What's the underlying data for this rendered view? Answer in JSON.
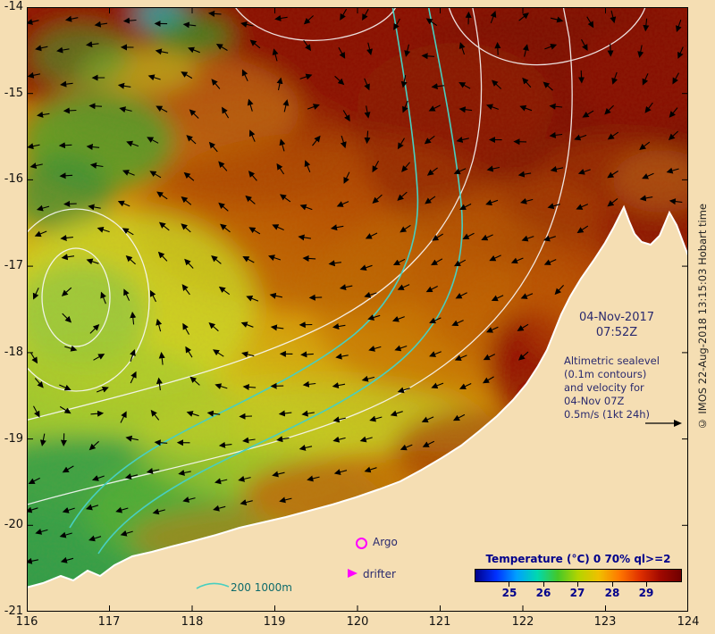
{
  "page": {
    "background": "#f5deb3"
  },
  "axes": {
    "x_tick_labels": [
      "116",
      "117",
      "118",
      "119",
      "120",
      "121",
      "122",
      "123",
      "124"
    ],
    "y_tick_labels": [
      "-14",
      "-15",
      "-16",
      "-17",
      "-18",
      "-19",
      "-20",
      "-21"
    ]
  },
  "overlay": {
    "date_line1": "04-Nov-2017",
    "date_line2": "07:52Z",
    "info_lines": [
      "Altimetric sealevel",
      "(0.1m contours)",
      "and velocity for",
      "04-Nov 07Z",
      "0.5m/s (1kt 24h)"
    ],
    "argo_label": "Argo",
    "drifter_label": "drifter",
    "bathymetry_label": "200 1000m",
    "copyright": "© IMOS 22-Aug-2018 13:15:03 Hobart time"
  },
  "colorbar": {
    "title": "Temperature (°C) 0 70% ql>=2",
    "tick_labels": [
      "25",
      "26",
      "27",
      "28",
      "29"
    ],
    "gradient": [
      "#00008b",
      "#0030ff",
      "#00a0ff",
      "#00d8b0",
      "#44c828",
      "#b4d400",
      "#f0c000",
      "#ff7800",
      "#e03000",
      "#a00800",
      "#700000"
    ]
  },
  "markers": {
    "accent": "#ff00ff",
    "sea_contour_color": "#f8f8f8",
    "bathymetry_color": "#48cfc0"
  },
  "arrows": {
    "spacing": 34,
    "length": 13,
    "color": "#000000"
  }
}
